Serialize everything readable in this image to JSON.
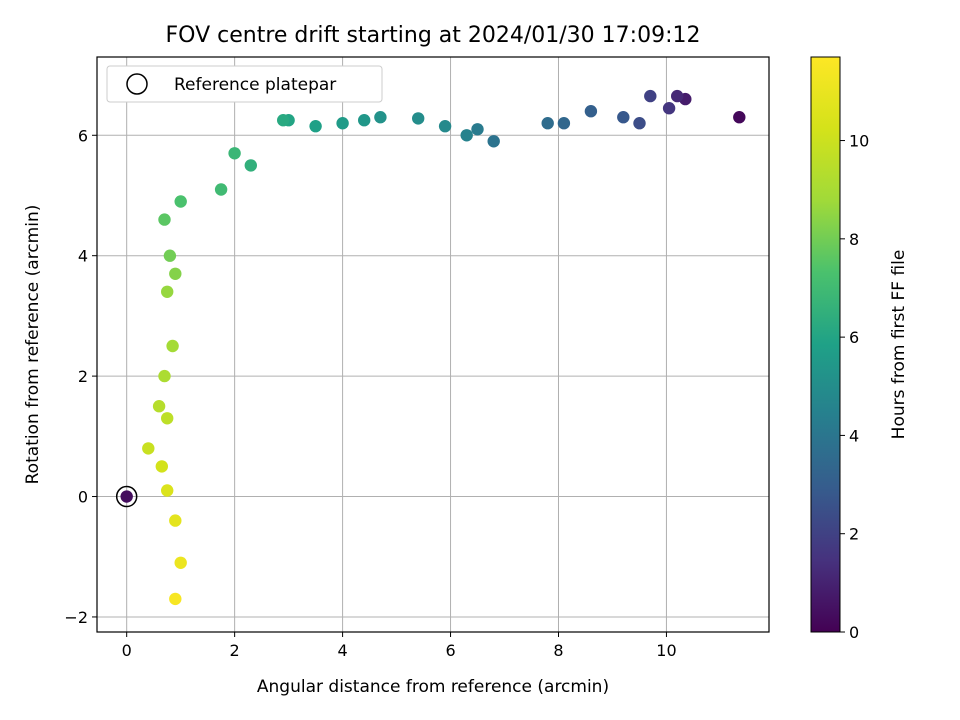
{
  "chart_data": {
    "type": "scatter",
    "title": "FOV centre drift starting at 2024/01/30 17:09:12",
    "xlabel": "Angular distance from reference (arcmin)",
    "ylabel": "Rotation from reference (arcmin)",
    "colorbar_label": "Hours from first FF file",
    "colormap": "viridis",
    "xlim": [
      -0.55,
      11.9
    ],
    "ylim": [
      -2.25,
      7.3
    ],
    "clim": [
      0,
      11.7
    ],
    "xticks": [
      "0",
      "2",
      "4",
      "6",
      "8",
      "10"
    ],
    "yticks": [
      "−2",
      "0",
      "2",
      "4",
      "6"
    ],
    "cticks": [
      "0",
      "2",
      "4",
      "6",
      "8",
      "10"
    ],
    "grid": true,
    "legend": {
      "position": "top-left",
      "entries": [
        "Reference platepar"
      ]
    },
    "reference_point": {
      "x": 0,
      "y": 0
    },
    "trend_points": [
      {
        "x": 11.35,
        "y": 6.3,
        "hours": 0.2
      },
      {
        "x": 10.35,
        "y": 6.6,
        "hours": 0.8
      },
      {
        "x": 10.2,
        "y": 6.65,
        "hours": 1.2
      },
      {
        "x": 10.05,
        "y": 6.45,
        "hours": 1.6
      },
      {
        "x": 9.7,
        "y": 6.65,
        "hours": 2.0
      },
      {
        "x": 9.5,
        "y": 6.2,
        "hours": 2.4
      },
      {
        "x": 9.2,
        "y": 6.3,
        "hours": 2.8
      },
      {
        "x": 8.6,
        "y": 6.4,
        "hours": 3.1
      },
      {
        "x": 8.1,
        "y": 6.2,
        "hours": 3.4
      },
      {
        "x": 7.8,
        "y": 6.2,
        "hours": 3.6
      },
      {
        "x": 6.8,
        "y": 5.9,
        "hours": 3.9
      },
      {
        "x": 6.5,
        "y": 6.1,
        "hours": 4.2
      },
      {
        "x": 6.3,
        "y": 6.0,
        "hours": 4.5
      },
      {
        "x": 5.9,
        "y": 6.15,
        "hours": 4.8
      },
      {
        "x": 5.4,
        "y": 6.28,
        "hours": 5.0
      },
      {
        "x": 4.7,
        "y": 6.3,
        "hours": 5.2
      },
      {
        "x": 4.4,
        "y": 6.25,
        "hours": 5.4
      },
      {
        "x": 4.0,
        "y": 6.2,
        "hours": 5.6
      },
      {
        "x": 3.5,
        "y": 6.15,
        "hours": 5.8
      },
      {
        "x": 3.0,
        "y": 6.25,
        "hours": 6.0
      },
      {
        "x": 2.9,
        "y": 6.25,
        "hours": 6.2
      },
      {
        "x": 2.3,
        "y": 5.5,
        "hours": 6.5
      },
      {
        "x": 2.0,
        "y": 5.7,
        "hours": 6.8
      },
      {
        "x": 1.75,
        "y": 5.1,
        "hours": 7.0
      },
      {
        "x": 1.0,
        "y": 4.9,
        "hours": 7.3
      },
      {
        "x": 0.7,
        "y": 4.6,
        "hours": 7.6
      },
      {
        "x": 0.8,
        "y": 4.0,
        "hours": 8.0
      },
      {
        "x": 0.9,
        "y": 3.7,
        "hours": 8.3
      },
      {
        "x": 0.75,
        "y": 3.4,
        "hours": 8.6
      },
      {
        "x": 0.85,
        "y": 2.5,
        "hours": 8.9
      },
      {
        "x": 0.7,
        "y": 2.0,
        "hours": 9.1
      },
      {
        "x": 0.6,
        "y": 1.5,
        "hours": 9.4
      },
      {
        "x": 0.75,
        "y": 1.3,
        "hours": 9.6
      },
      {
        "x": 0.4,
        "y": 0.8,
        "hours": 9.9
      },
      {
        "x": 0.65,
        "y": 0.5,
        "hours": 10.2
      },
      {
        "x": 0.75,
        "y": 0.1,
        "hours": 10.5
      },
      {
        "x": 0.9,
        "y": -0.4,
        "hours": 10.8
      },
      {
        "x": 1.0,
        "y": -1.1,
        "hours": 11.1
      },
      {
        "x": 0.9,
        "y": -1.7,
        "hours": 11.5
      }
    ]
  }
}
